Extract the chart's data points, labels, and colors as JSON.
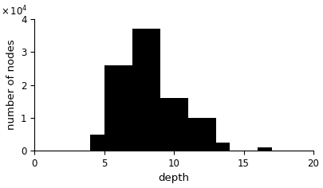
{
  "bar_left_edges": [
    4,
    5,
    6,
    7,
    8,
    9,
    10,
    11,
    12,
    13,
    16
  ],
  "bar_heights": [
    5000,
    26000,
    26000,
    37000,
    37000,
    16000,
    16000,
    10000,
    10000,
    2500,
    1000
  ],
  "bar_width": 1,
  "bar_color": "#000000",
  "bar_edgecolor": "#000000",
  "xlim": [
    0,
    20
  ],
  "ylim": [
    0,
    40000
  ],
  "yticks": [
    0,
    10000,
    20000,
    30000,
    40000
  ],
  "ytick_labels": [
    "0",
    "1",
    "2",
    "3",
    "4"
  ],
  "xticks": [
    0,
    5,
    10,
    15,
    20
  ],
  "xtick_labels": [
    "0",
    "5",
    "10",
    "15",
    "20"
  ],
  "ylabel": "number of nodes",
  "xlabel": "depth",
  "tick_fontsize": 8.5,
  "label_fontsize": 9.5,
  "background_color": "#ffffff",
  "sci_x": -0.12,
  "sci_y": 1.01
}
